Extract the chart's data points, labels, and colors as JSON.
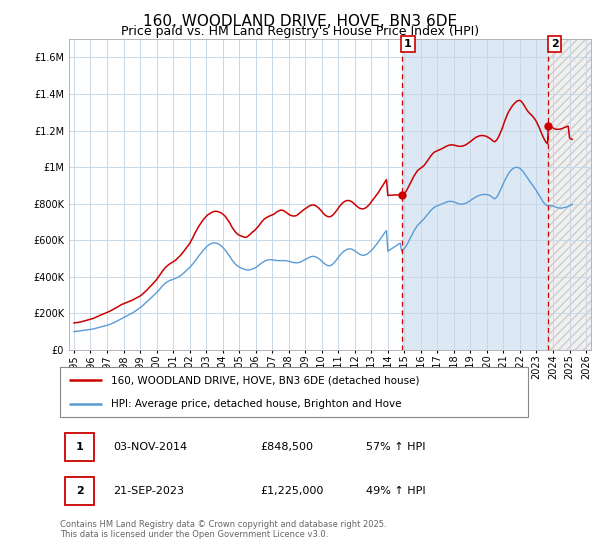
{
  "title": "160, WOODLAND DRIVE, HOVE, BN3 6DE",
  "subtitle": "Price paid vs. HM Land Registry's House Price Index (HPI)",
  "ylim": [
    0,
    1700000
  ],
  "yticks": [
    0,
    200000,
    400000,
    600000,
    800000,
    1000000,
    1200000,
    1400000,
    1600000
  ],
  "xlim_start": 1994.7,
  "xlim_end": 2026.3,
  "sale1_date": 2014.84,
  "sale1_label": "1",
  "sale1_price": 848500,
  "sale2_date": 2023.72,
  "sale2_label": "2",
  "sale2_price": 1225000,
  "legend_red": "160, WOODLAND DRIVE, HOVE, BN3 6DE (detached house)",
  "legend_blue": "HPI: Average price, detached house, Brighton and Hove",
  "footer": "Contains HM Land Registry data © Crown copyright and database right 2025.\nThis data is licensed under the Open Government Licence v3.0.",
  "red_color": "#cc0000",
  "blue_color": "#5b9bd5",
  "grid_color": "#c8d8e8",
  "hpi_background": "#dce9f5",
  "hatch_background": "#e8e8e8",
  "title_fontsize": 11,
  "subtitle_fontsize": 9,
  "tick_fontsize": 7,
  "red_line_data_x": [
    1995.0,
    1995.08,
    1995.17,
    1995.25,
    1995.33,
    1995.42,
    1995.5,
    1995.58,
    1995.67,
    1995.75,
    1995.83,
    1995.92,
    1996.0,
    1996.08,
    1996.17,
    1996.25,
    1996.33,
    1996.42,
    1996.5,
    1996.58,
    1996.67,
    1996.75,
    1996.83,
    1996.92,
    1997.0,
    1997.08,
    1997.17,
    1997.25,
    1997.33,
    1997.42,
    1997.5,
    1997.58,
    1997.67,
    1997.75,
    1997.83,
    1997.92,
    1998.0,
    1998.08,
    1998.17,
    1998.25,
    1998.33,
    1998.42,
    1998.5,
    1998.58,
    1998.67,
    1998.75,
    1998.83,
    1998.92,
    1999.0,
    1999.08,
    1999.17,
    1999.25,
    1999.33,
    1999.42,
    1999.5,
    1999.58,
    1999.67,
    1999.75,
    1999.83,
    1999.92,
    2000.0,
    2000.08,
    2000.17,
    2000.25,
    2000.33,
    2000.42,
    2000.5,
    2000.58,
    2000.67,
    2000.75,
    2000.83,
    2000.92,
    2001.0,
    2001.08,
    2001.17,
    2001.25,
    2001.33,
    2001.42,
    2001.5,
    2001.58,
    2001.67,
    2001.75,
    2001.83,
    2001.92,
    2002.0,
    2002.08,
    2002.17,
    2002.25,
    2002.33,
    2002.42,
    2002.5,
    2002.58,
    2002.67,
    2002.75,
    2002.83,
    2002.92,
    2003.0,
    2003.08,
    2003.17,
    2003.25,
    2003.33,
    2003.42,
    2003.5,
    2003.58,
    2003.67,
    2003.75,
    2003.83,
    2003.92,
    2004.0,
    2004.08,
    2004.17,
    2004.25,
    2004.33,
    2004.42,
    2004.5,
    2004.58,
    2004.67,
    2004.75,
    2004.83,
    2004.92,
    2005.0,
    2005.08,
    2005.17,
    2005.25,
    2005.33,
    2005.42,
    2005.5,
    2005.58,
    2005.67,
    2005.75,
    2005.83,
    2005.92,
    2006.0,
    2006.08,
    2006.17,
    2006.25,
    2006.33,
    2006.42,
    2006.5,
    2006.58,
    2006.67,
    2006.75,
    2006.83,
    2006.92,
    2007.0,
    2007.08,
    2007.17,
    2007.25,
    2007.33,
    2007.42,
    2007.5,
    2007.58,
    2007.67,
    2007.75,
    2007.83,
    2007.92,
    2008.0,
    2008.08,
    2008.17,
    2008.25,
    2008.33,
    2008.42,
    2008.5,
    2008.58,
    2008.67,
    2008.75,
    2008.83,
    2008.92,
    2009.0,
    2009.08,
    2009.17,
    2009.25,
    2009.33,
    2009.42,
    2009.5,
    2009.58,
    2009.67,
    2009.75,
    2009.83,
    2009.92,
    2010.0,
    2010.08,
    2010.17,
    2010.25,
    2010.33,
    2010.42,
    2010.5,
    2010.58,
    2010.67,
    2010.75,
    2010.83,
    2010.92,
    2011.0,
    2011.08,
    2011.17,
    2011.25,
    2011.33,
    2011.42,
    2011.5,
    2011.58,
    2011.67,
    2011.75,
    2011.83,
    2011.92,
    2012.0,
    2012.08,
    2012.17,
    2012.25,
    2012.33,
    2012.42,
    2012.5,
    2012.58,
    2012.67,
    2012.75,
    2012.83,
    2012.92,
    2013.0,
    2013.08,
    2013.17,
    2013.25,
    2013.33,
    2013.42,
    2013.5,
    2013.58,
    2013.67,
    2013.75,
    2013.83,
    2013.92,
    2014.0,
    2014.08,
    2014.17,
    2014.25,
    2014.33,
    2014.42,
    2014.5,
    2014.58,
    2014.67,
    2014.75,
    2014.84,
    2015.0,
    2015.08,
    2015.17,
    2015.25,
    2015.33,
    2015.42,
    2015.5,
    2015.58,
    2015.67,
    2015.75,
    2015.83,
    2015.92,
    2016.0,
    2016.08,
    2016.17,
    2016.25,
    2016.33,
    2016.42,
    2016.5,
    2016.58,
    2016.67,
    2016.75,
    2016.83,
    2016.92,
    2017.0,
    2017.08,
    2017.17,
    2017.25,
    2017.33,
    2017.42,
    2017.5,
    2017.58,
    2017.67,
    2017.75,
    2017.83,
    2017.92,
    2018.0,
    2018.08,
    2018.17,
    2018.25,
    2018.33,
    2018.42,
    2018.5,
    2018.58,
    2018.67,
    2018.75,
    2018.83,
    2018.92,
    2019.0,
    2019.08,
    2019.17,
    2019.25,
    2019.33,
    2019.42,
    2019.5,
    2019.58,
    2019.67,
    2019.75,
    2019.83,
    2019.92,
    2020.0,
    2020.08,
    2020.17,
    2020.25,
    2020.33,
    2020.42,
    2020.5,
    2020.58,
    2020.67,
    2020.75,
    2020.83,
    2020.92,
    2021.0,
    2021.08,
    2021.17,
    2021.25,
    2021.33,
    2021.42,
    2021.5,
    2021.58,
    2021.67,
    2021.75,
    2021.83,
    2021.92,
    2022.0,
    2022.08,
    2022.17,
    2022.25,
    2022.33,
    2022.42,
    2022.5,
    2022.58,
    2022.67,
    2022.75,
    2022.83,
    2022.92,
    2023.0,
    2023.08,
    2023.17,
    2023.25,
    2023.33,
    2023.42,
    2023.5,
    2023.58,
    2023.67,
    2023.72,
    2024.0,
    2024.08,
    2024.17,
    2024.25,
    2024.33,
    2024.42,
    2024.5,
    2024.58,
    2024.67,
    2024.75,
    2024.83,
    2024.92,
    2025.0,
    2025.08,
    2025.17
  ],
  "red_line_data_y": [
    148000,
    149000,
    150000,
    151000,
    152000,
    154000,
    156000,
    158000,
    160000,
    162000,
    164000,
    166000,
    168000,
    170000,
    173000,
    176000,
    179000,
    182000,
    186000,
    190000,
    193000,
    196000,
    199000,
    202000,
    205000,
    208000,
    212000,
    216000,
    220000,
    224000,
    228000,
    232000,
    237000,
    242000,
    246000,
    250000,
    253000,
    256000,
    259000,
    262000,
    265000,
    268000,
    271000,
    275000,
    279000,
    283000,
    287000,
    291000,
    295000,
    300000,
    307000,
    314000,
    321000,
    328000,
    336000,
    344000,
    352000,
    360000,
    368000,
    376000,
    385000,
    395000,
    406000,
    417000,
    428000,
    438000,
    448000,
    455000,
    462000,
    468000,
    473000,
    478000,
    482000,
    487000,
    493000,
    500000,
    507000,
    515000,
    523000,
    532000,
    542000,
    552000,
    562000,
    572000,
    582000,
    595000,
    610000,
    625000,
    640000,
    655000,
    668000,
    680000,
    692000,
    703000,
    713000,
    722000,
    730000,
    738000,
    743000,
    748000,
    752000,
    756000,
    758000,
    759000,
    758000,
    756000,
    753000,
    749000,
    744000,
    738000,
    730000,
    720000,
    709000,
    697000,
    684000,
    670000,
    658000,
    648000,
    640000,
    633000,
    628000,
    625000,
    622000,
    619000,
    617000,
    617000,
    620000,
    626000,
    633000,
    640000,
    647000,
    653000,
    660000,
    668000,
    677000,
    687000,
    697000,
    706000,
    714000,
    720000,
    725000,
    729000,
    732000,
    735000,
    738000,
    742000,
    747000,
    753000,
    758000,
    762000,
    765000,
    765000,
    763000,
    759000,
    754000,
    748000,
    742000,
    738000,
    735000,
    733000,
    733000,
    734000,
    737000,
    743000,
    749000,
    756000,
    762000,
    768000,
    773000,
    778000,
    783000,
    788000,
    791000,
    793000,
    793000,
    791000,
    787000,
    782000,
    775000,
    767000,
    758000,
    749000,
    741000,
    735000,
    731000,
    729000,
    729000,
    732000,
    738000,
    746000,
    755000,
    765000,
    776000,
    786000,
    795000,
    803000,
    809000,
    814000,
    817000,
    818000,
    817000,
    814000,
    810000,
    804000,
    797000,
    790000,
    783000,
    778000,
    774000,
    772000,
    772000,
    774000,
    778000,
    784000,
    791000,
    800000,
    810000,
    820000,
    830000,
    840000,
    850000,
    860000,
    872000,
    884000,
    896000,
    908000,
    920000,
    932000,
    845000,
    846000,
    847000,
    847500,
    847800,
    848000,
    848200,
    848400,
    848480,
    848490,
    848500,
    855000,
    865000,
    878000,
    892000,
    907000,
    922000,
    937000,
    951000,
    964000,
    975000,
    984000,
    990000,
    995000,
    1000000,
    1007000,
    1016000,
    1026000,
    1037000,
    1048000,
    1059000,
    1069000,
    1077000,
    1083000,
    1087000,
    1090000,
    1093000,
    1096000,
    1100000,
    1104000,
    1108000,
    1112000,
    1116000,
    1119000,
    1121000,
    1122000,
    1122000,
    1121000,
    1119000,
    1117000,
    1115000,
    1114000,
    1114000,
    1115000,
    1117000,
    1120000,
    1124000,
    1129000,
    1134000,
    1140000,
    1146000,
    1152000,
    1158000,
    1163000,
    1167000,
    1170000,
    1172000,
    1173000,
    1173000,
    1172000,
    1170000,
    1167000,
    1163000,
    1158000,
    1152000,
    1146000,
    1140000,
    1140000,
    1148000,
    1160000,
    1175000,
    1192000,
    1211000,
    1232000,
    1253000,
    1273000,
    1291000,
    1306000,
    1319000,
    1330000,
    1340000,
    1349000,
    1356000,
    1362000,
    1365000,
    1365000,
    1360000,
    1350000,
    1338000,
    1325000,
    1313000,
    1303000,
    1295000,
    1288000,
    1280000,
    1271000,
    1261000,
    1248000,
    1233000,
    1216000,
    1198000,
    1180000,
    1162000,
    1148000,
    1136000,
    1128000,
    1225000,
    1215000,
    1210000,
    1208000,
    1207000,
    1207000,
    1208000,
    1210000,
    1213000,
    1216000,
    1219000,
    1222000,
    1224000,
    1160000,
    1155000,
    1152000
  ],
  "blue_line_data_x": [
    1995.0,
    1995.08,
    1995.17,
    1995.25,
    1995.33,
    1995.42,
    1995.5,
    1995.58,
    1995.67,
    1995.75,
    1995.83,
    1995.92,
    1996.0,
    1996.08,
    1996.17,
    1996.25,
    1996.33,
    1996.42,
    1996.5,
    1996.58,
    1996.67,
    1996.75,
    1996.83,
    1996.92,
    1997.0,
    1997.08,
    1997.17,
    1997.25,
    1997.33,
    1997.42,
    1997.5,
    1997.58,
    1997.67,
    1997.75,
    1997.83,
    1997.92,
    1998.0,
    1998.08,
    1998.17,
    1998.25,
    1998.33,
    1998.42,
    1998.5,
    1998.58,
    1998.67,
    1998.75,
    1998.83,
    1998.92,
    1999.0,
    1999.08,
    1999.17,
    1999.25,
    1999.33,
    1999.42,
    1999.5,
    1999.58,
    1999.67,
    1999.75,
    1999.83,
    1999.92,
    2000.0,
    2000.08,
    2000.17,
    2000.25,
    2000.33,
    2000.42,
    2000.5,
    2000.58,
    2000.67,
    2000.75,
    2000.83,
    2000.92,
    2001.0,
    2001.08,
    2001.17,
    2001.25,
    2001.33,
    2001.42,
    2001.5,
    2001.58,
    2001.67,
    2001.75,
    2001.83,
    2001.92,
    2002.0,
    2002.08,
    2002.17,
    2002.25,
    2002.33,
    2002.42,
    2002.5,
    2002.58,
    2002.67,
    2002.75,
    2002.83,
    2002.92,
    2003.0,
    2003.08,
    2003.17,
    2003.25,
    2003.33,
    2003.42,
    2003.5,
    2003.58,
    2003.67,
    2003.75,
    2003.83,
    2003.92,
    2004.0,
    2004.08,
    2004.17,
    2004.25,
    2004.33,
    2004.42,
    2004.5,
    2004.58,
    2004.67,
    2004.75,
    2004.83,
    2004.92,
    2005.0,
    2005.08,
    2005.17,
    2005.25,
    2005.33,
    2005.42,
    2005.5,
    2005.58,
    2005.67,
    2005.75,
    2005.83,
    2005.92,
    2006.0,
    2006.08,
    2006.17,
    2006.25,
    2006.33,
    2006.42,
    2006.5,
    2006.58,
    2006.67,
    2006.75,
    2006.83,
    2006.92,
    2007.0,
    2007.08,
    2007.17,
    2007.25,
    2007.33,
    2007.42,
    2007.5,
    2007.58,
    2007.67,
    2007.75,
    2007.83,
    2007.92,
    2008.0,
    2008.08,
    2008.17,
    2008.25,
    2008.33,
    2008.42,
    2008.5,
    2008.58,
    2008.67,
    2008.75,
    2008.83,
    2008.92,
    2009.0,
    2009.08,
    2009.17,
    2009.25,
    2009.33,
    2009.42,
    2009.5,
    2009.58,
    2009.67,
    2009.75,
    2009.83,
    2009.92,
    2010.0,
    2010.08,
    2010.17,
    2010.25,
    2010.33,
    2010.42,
    2010.5,
    2010.58,
    2010.67,
    2010.75,
    2010.83,
    2010.92,
    2011.0,
    2011.08,
    2011.17,
    2011.25,
    2011.33,
    2011.42,
    2011.5,
    2011.58,
    2011.67,
    2011.75,
    2011.83,
    2011.92,
    2012.0,
    2012.08,
    2012.17,
    2012.25,
    2012.33,
    2012.42,
    2012.5,
    2012.58,
    2012.67,
    2012.75,
    2012.83,
    2012.92,
    2013.0,
    2013.08,
    2013.17,
    2013.25,
    2013.33,
    2013.42,
    2013.5,
    2013.58,
    2013.67,
    2013.75,
    2013.83,
    2013.92,
    2014.0,
    2014.08,
    2014.17,
    2014.25,
    2014.33,
    2014.42,
    2014.5,
    2014.58,
    2014.67,
    2014.75,
    2014.84,
    2015.0,
    2015.08,
    2015.17,
    2015.25,
    2015.33,
    2015.42,
    2015.5,
    2015.58,
    2015.67,
    2015.75,
    2015.83,
    2015.92,
    2016.0,
    2016.08,
    2016.17,
    2016.25,
    2016.33,
    2016.42,
    2016.5,
    2016.58,
    2016.67,
    2016.75,
    2016.83,
    2016.92,
    2017.0,
    2017.08,
    2017.17,
    2017.25,
    2017.33,
    2017.42,
    2017.5,
    2017.58,
    2017.67,
    2017.75,
    2017.83,
    2017.92,
    2018.0,
    2018.08,
    2018.17,
    2018.25,
    2018.33,
    2018.42,
    2018.5,
    2018.58,
    2018.67,
    2018.75,
    2018.83,
    2018.92,
    2019.0,
    2019.08,
    2019.17,
    2019.25,
    2019.33,
    2019.42,
    2019.5,
    2019.58,
    2019.67,
    2019.75,
    2019.83,
    2019.92,
    2020.0,
    2020.08,
    2020.17,
    2020.25,
    2020.33,
    2020.42,
    2020.5,
    2020.58,
    2020.67,
    2020.75,
    2020.83,
    2020.92,
    2021.0,
    2021.08,
    2021.17,
    2021.25,
    2021.33,
    2021.42,
    2021.5,
    2021.58,
    2021.67,
    2021.75,
    2021.83,
    2021.92,
    2022.0,
    2022.08,
    2022.17,
    2022.25,
    2022.33,
    2022.42,
    2022.5,
    2022.58,
    2022.67,
    2022.75,
    2022.83,
    2022.92,
    2023.0,
    2023.08,
    2023.17,
    2023.25,
    2023.33,
    2023.42,
    2023.5,
    2023.58,
    2023.67,
    2023.72,
    2024.0,
    2024.08,
    2024.17,
    2024.25,
    2024.33,
    2024.42,
    2024.5,
    2024.58,
    2024.67,
    2024.75,
    2024.83,
    2024.92,
    2025.0,
    2025.08,
    2025.17
  ],
  "blue_line_data_y": [
    100000,
    101000,
    102000,
    103000,
    104000,
    105000,
    106000,
    107000,
    108000,
    109000,
    110000,
    111000,
    112000,
    113000,
    115000,
    117000,
    119000,
    121000,
    123000,
    125000,
    127000,
    129000,
    131000,
    133000,
    135000,
    137000,
    140000,
    143000,
    146000,
    149000,
    153000,
    157000,
    161000,
    165000,
    169000,
    173000,
    177000,
    181000,
    185000,
    189000,
    193000,
    197000,
    201000,
    205000,
    210000,
    215000,
    220000,
    225000,
    230000,
    236000,
    243000,
    250000,
    257000,
    264000,
    271000,
    278000,
    285000,
    292000,
    299000,
    306000,
    313000,
    321000,
    330000,
    339000,
    348000,
    356000,
    363000,
    369000,
    374000,
    378000,
    381000,
    384000,
    386000,
    389000,
    392000,
    396000,
    400000,
    405000,
    410000,
    416000,
    423000,
    430000,
    437000,
    444000,
    451000,
    459000,
    468000,
    477000,
    487000,
    497000,
    507000,
    517000,
    527000,
    537000,
    546000,
    554000,
    562000,
    569000,
    575000,
    580000,
    583000,
    585000,
    586000,
    585000,
    583000,
    580000,
    575000,
    569000,
    562000,
    554000,
    545000,
    535000,
    524000,
    513000,
    502000,
    491000,
    481000,
    472000,
    465000,
    459000,
    454000,
    450000,
    447000,
    444000,
    441000,
    439000,
    438000,
    438000,
    439000,
    441000,
    444000,
    447000,
    451000,
    456000,
    462000,
    468000,
    474000,
    479000,
    484000,
    488000,
    491000,
    493000,
    494000,
    494000,
    493000,
    492000,
    491000,
    490000,
    489000,
    489000,
    489000,
    489000,
    489000,
    489000,
    488000,
    487000,
    485000,
    483000,
    481000,
    479000,
    478000,
    477000,
    477000,
    478000,
    480000,
    483000,
    487000,
    491000,
    495000,
    499000,
    503000,
    507000,
    510000,
    512000,
    512000,
    511000,
    508000,
    504000,
    499000,
    493000,
    486000,
    479000,
    472000,
    467000,
    463000,
    461000,
    461000,
    464000,
    470000,
    477000,
    486000,
    496000,
    506000,
    516000,
    525000,
    533000,
    540000,
    545000,
    549000,
    552000,
    553000,
    553000,
    551000,
    547000,
    542000,
    537000,
    531000,
    526000,
    522000,
    519000,
    518000,
    519000,
    521000,
    525000,
    530000,
    537000,
    544000,
    552000,
    561000,
    570000,
    580000,
    590000,
    601000,
    612000,
    623000,
    634000,
    644000,
    653000,
    540000,
    545000,
    550000,
    555000,
    560000,
    565000,
    570000,
    575000,
    580000,
    585000,
    540000,
    555000,
    565000,
    578000,
    592000,
    607000,
    622000,
    637000,
    651000,
    664000,
    675000,
    685000,
    693000,
    700000,
    707000,
    715000,
    724000,
    733000,
    743000,
    752000,
    761000,
    769000,
    776000,
    782000,
    786000,
    789000,
    792000,
    795000,
    798000,
    801000,
    804000,
    807000,
    810000,
    812000,
    813000,
    813000,
    812000,
    810000,
    807000,
    804000,
    801000,
    799000,
    798000,
    798000,
    799000,
    801000,
    804000,
    808000,
    813000,
    818000,
    823000,
    828000,
    833000,
    837000,
    841000,
    844000,
    847000,
    849000,
    850000,
    851000,
    851000,
    850000,
    848000,
    845000,
    841000,
    835000,
    828000,
    828000,
    835000,
    847000,
    862000,
    878000,
    895000,
    912000,
    928000,
    943000,
    957000,
    969000,
    979000,
    987000,
    993000,
    997000,
    999000,
    999000,
    997000,
    993000,
    986000,
    978000,
    968000,
    957000,
    946000,
    935000,
    924000,
    913000,
    903000,
    893000,
    882000,
    870000,
    858000,
    845000,
    832000,
    820000,
    808000,
    800000,
    793000,
    789000,
    790000,
    788000,
    785000,
    782000,
    779000,
    777000,
    776000,
    776000,
    777000,
    779000,
    781000,
    783000,
    785000,
    790000,
    793000,
    795000
  ]
}
